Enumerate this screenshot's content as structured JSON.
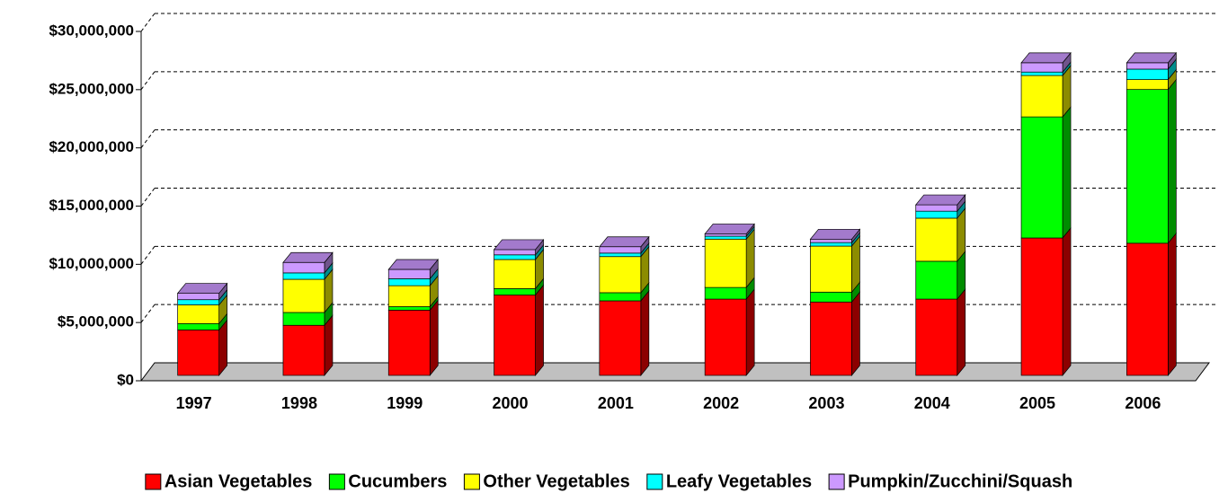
{
  "chart_data": {
    "type": "bar3d_stacked",
    "categories": [
      "1997",
      "1998",
      "1999",
      "2000",
      "2001",
      "2002",
      "2003",
      "2004",
      "2005",
      "2006"
    ],
    "series": [
      {
        "name": "Asian Vegetables",
        "color": "#ff0000",
        "values": [
          3900000,
          4300000,
          5600000,
          6900000,
          6400000,
          6550000,
          6300000,
          6550000,
          11800000,
          11350000
        ]
      },
      {
        "name": "Cucumbers",
        "color": "#00ff00",
        "values": [
          550000,
          1100000,
          300000,
          550000,
          700000,
          1000000,
          850000,
          3250000,
          10400000,
          13200000
        ]
      },
      {
        "name": "Other Vegetables",
        "color": "#ffff00",
        "values": [
          1600000,
          2850000,
          1800000,
          2500000,
          3100000,
          4150000,
          3950000,
          3700000,
          3550000,
          850000
        ]
      },
      {
        "name": "Leafy Vegetables",
        "color": "#00ffff",
        "values": [
          450000,
          550000,
          600000,
          400000,
          300000,
          250000,
          300000,
          600000,
          300000,
          900000
        ]
      },
      {
        "name": "Pumpkin/Zucchini/Squash",
        "color": "#cc99ff",
        "values": [
          550000,
          900000,
          800000,
          450000,
          550000,
          200000,
          300000,
          550000,
          800000,
          550000
        ]
      }
    ],
    "ylim": [
      0,
      30000000
    ],
    "yticks": [
      {
        "value": 0,
        "label": "$0"
      },
      {
        "value": 5000000,
        "label": "$5,000,000"
      },
      {
        "value": 10000000,
        "label": "$10,000,000"
      },
      {
        "value": 15000000,
        "label": "$15,000,000"
      },
      {
        "value": 20000000,
        "label": "$20,000,000"
      },
      {
        "value": 25000000,
        "label": "$25,000,000"
      },
      {
        "value": 30000000,
        "label": "$30,000,000"
      }
    ],
    "grid": true,
    "legend": "bottom"
  }
}
